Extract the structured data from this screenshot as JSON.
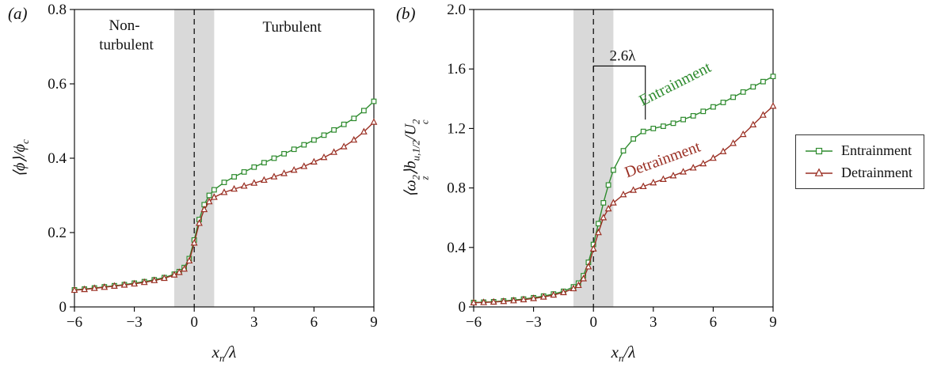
{
  "panels": {
    "a": {
      "tag": "(a)",
      "ylabel": {
        "main": "⟨ϕ⟩/ϕ",
        "sub": "c"
      }
    },
    "b": {
      "tag": "(b)",
      "ylabel": {
        "s1": "⟨ω",
        "s1sup": "2",
        "s1sub": "z",
        "s2": "⟩b",
        "s2sub": "u,1/2",
        "s3": "/U",
        "s3sup": "2",
        "s3sub": "c"
      }
    },
    "xlabel": {
      "base": "x",
      "sub": "n",
      "rest": "/λ"
    }
  },
  "legend": {
    "items": [
      {
        "label": "Entrainment",
        "marker": "square",
        "color": "entrainment"
      },
      {
        "label": "Detrainment",
        "marker": "triangle",
        "color": "detrainment"
      }
    ]
  },
  "colors": {
    "entrainment": "#2e8b2e",
    "detrainment": "#9a2f23",
    "band": "#d9d9d9",
    "text": "#111111",
    "axis": "#000000"
  },
  "chart_data": [
    {
      "panel": "a",
      "type": "line",
      "xlim": [
        -6,
        9
      ],
      "ylim": [
        0,
        0.8
      ],
      "xticks": [
        -6,
        -3,
        0,
        3,
        6,
        9
      ],
      "xticklabels": [
        "−6",
        "−3",
        "0",
        "3",
        "6",
        "9"
      ],
      "yticks": [
        0,
        0.2,
        0.4,
        0.6,
        0.8
      ],
      "yticklabels": [
        "0",
        "0.2",
        "0.4",
        "0.6",
        "0.8"
      ],
      "band": [
        -1,
        1
      ],
      "vline": 0,
      "x": [
        -6,
        -5.5,
        -5,
        -4.5,
        -4,
        -3.5,
        -3,
        -2.5,
        -2,
        -1.5,
        -1,
        -0.75,
        -0.5,
        -0.25,
        0,
        0.25,
        0.5,
        0.75,
        1,
        1.5,
        2,
        2.5,
        3,
        3.5,
        4,
        4.5,
        5,
        5.5,
        6,
        6.5,
        7,
        7.5,
        8,
        8.5,
        9
      ],
      "series": [
        {
          "name": "Entrainment",
          "marker": "square",
          "color": "entrainment",
          "y": [
            0.046,
            0.048,
            0.051,
            0.054,
            0.057,
            0.06,
            0.064,
            0.068,
            0.073,
            0.079,
            0.088,
            0.095,
            0.106,
            0.13,
            0.18,
            0.235,
            0.275,
            0.3,
            0.315,
            0.335,
            0.35,
            0.363,
            0.376,
            0.388,
            0.4,
            0.412,
            0.424,
            0.436,
            0.449,
            0.462,
            0.476,
            0.491,
            0.507,
            0.528,
            0.553
          ]
        },
        {
          "name": "Detrainment",
          "marker": "triangle",
          "color": "detrainment",
          "y": [
            0.045,
            0.047,
            0.05,
            0.053,
            0.056,
            0.059,
            0.062,
            0.066,
            0.071,
            0.077,
            0.086,
            0.093,
            0.102,
            0.124,
            0.172,
            0.225,
            0.262,
            0.283,
            0.295,
            0.308,
            0.317,
            0.325,
            0.333,
            0.341,
            0.35,
            0.359,
            0.368,
            0.378,
            0.39,
            0.402,
            0.416,
            0.431,
            0.449,
            0.471,
            0.497
          ]
        }
      ],
      "annotations": [
        {
          "text": "Non-",
          "x": -3.5,
          "y": 0.745,
          "size": 19
        },
        {
          "text": "turbulent",
          "x": -3.4,
          "y": 0.693,
          "size": 19
        },
        {
          "text": "Turbulent",
          "x": 4.9,
          "y": 0.74,
          "size": 19
        }
      ]
    },
    {
      "panel": "b",
      "type": "line",
      "xlim": [
        -6,
        9
      ],
      "ylim": [
        0,
        2.0
      ],
      "xticks": [
        -6,
        -3,
        0,
        3,
        6,
        9
      ],
      "xticklabels": [
        "−6",
        "−3",
        "0",
        "3",
        "6",
        "9"
      ],
      "yticks": [
        0,
        0.4,
        0.8,
        1.2,
        1.6,
        2.0
      ],
      "yticklabels": [
        "0",
        "0.4",
        "0.8",
        "1.2",
        "1.6",
        "2.0"
      ],
      "band": [
        -1,
        1
      ],
      "vline": 0,
      "x": [
        -6,
        -5.5,
        -5,
        -4.5,
        -4,
        -3.5,
        -3,
        -2.5,
        -2,
        -1.5,
        -1,
        -0.75,
        -0.5,
        -0.25,
        0,
        0.25,
        0.5,
        0.75,
        1,
        1.5,
        2,
        2.5,
        3,
        3.5,
        4,
        4.5,
        5,
        5.5,
        6,
        6.5,
        7,
        7.5,
        8,
        8.5,
        9
      ],
      "series": [
        {
          "name": "Entrainment",
          "marker": "square",
          "color": "entrainment",
          "y": [
            0.03,
            0.032,
            0.035,
            0.04,
            0.046,
            0.053,
            0.062,
            0.073,
            0.087,
            0.105,
            0.135,
            0.16,
            0.21,
            0.3,
            0.42,
            0.56,
            0.7,
            0.82,
            0.92,
            1.05,
            1.13,
            1.18,
            1.2,
            1.215,
            1.235,
            1.26,
            1.285,
            1.315,
            1.345,
            1.375,
            1.41,
            1.445,
            1.48,
            1.515,
            1.55
          ]
        },
        {
          "name": "Detrainment",
          "marker": "triangle",
          "color": "detrainment",
          "y": [
            0.028,
            0.03,
            0.033,
            0.037,
            0.042,
            0.049,
            0.057,
            0.067,
            0.08,
            0.097,
            0.123,
            0.145,
            0.19,
            0.27,
            0.39,
            0.5,
            0.6,
            0.66,
            0.7,
            0.755,
            0.785,
            0.81,
            0.835,
            0.858,
            0.882,
            0.908,
            0.935,
            0.963,
            1.0,
            1.045,
            1.1,
            1.16,
            1.225,
            1.29,
            1.35
          ]
        }
      ],
      "bracket": {
        "x0": 0,
        "x1": 2.6,
        "y": 1.62,
        "drop_to": 1.26,
        "label": "2.6λ"
      },
      "annotations": [
        {
          "text": "Entrainment",
          "x": 4.2,
          "y": 1.47,
          "rotate": -27,
          "color": "entrainment",
          "size": 20
        },
        {
          "text": "Detrainment",
          "x": 3.55,
          "y": 0.96,
          "rotate": -20,
          "color": "detrainment",
          "size": 20
        }
      ]
    }
  ]
}
